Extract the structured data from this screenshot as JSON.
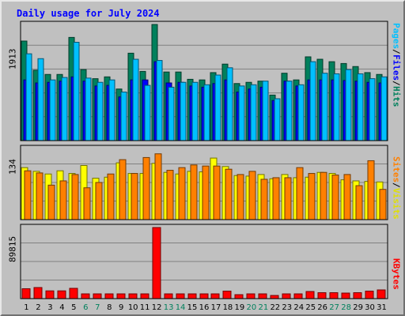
{
  "chart_data": {
    "type": "bar",
    "title": "Daily usage for July 2024",
    "categories": [
      "1",
      "2",
      "3",
      "4",
      "5",
      "6",
      "7",
      "8",
      "9",
      "10",
      "11",
      "12",
      "13",
      "14",
      "15",
      "16",
      "17",
      "18",
      "19",
      "20",
      "21",
      "22",
      "23",
      "24",
      "25",
      "26",
      "27",
      "28",
      "29",
      "30",
      "31"
    ],
    "weekend_days": [
      "6",
      "7",
      "13",
      "14",
      "20",
      "21",
      "27",
      "28"
    ],
    "grid": true,
    "panels": [
      {
        "id": "pages-files-hits",
        "max_label": "1913",
        "ylim": [
          0,
          1913
        ],
        "legend": [
          {
            "text": "Hits",
            "color": "#00805c"
          },
          {
            "text": "/",
            "color": "#000000"
          },
          {
            "text": "Files",
            "color": "#0000ff"
          },
          {
            "text": "/",
            "color": "#000000"
          },
          {
            "text": "Pages",
            "color": "#00c0ff"
          }
        ],
        "series": [
          {
            "name": "Hits",
            "color": "#00805c",
            "values": [
              1640,
              1160,
              1090,
              1090,
              1700,
              1170,
              1020,
              1050,
              850,
              1440,
              1140,
              1913,
              1130,
              1130,
              1010,
              1000,
              1120,
              1260,
              940,
              960,
              980,
              750,
              1110,
              1000,
              1380,
              1340,
              1300,
              1270,
              1220,
              1120,
              1090
            ]
          },
          {
            "name": "Files",
            "color": "#0000ff",
            "values": [
              1000,
              950,
              960,
              980,
              1050,
              980,
              900,
              910,
              720,
              1000,
              1000,
              1300,
              950,
              960,
              900,
              880,
              940,
              1000,
              800,
              850,
              880,
              660,
              980,
              900,
              1000,
              1000,
              1000,
              990,
              980,
              960,
              950
            ]
          },
          {
            "name": "Pages",
            "color": "#00c0ff",
            "values": [
              1430,
              1350,
              1000,
              1040,
              1620,
              1030,
              960,
              1000,
              800,
              1340,
              910,
              1320,
              880,
              960,
              960,
              920,
              1080,
              1200,
              900,
              920,
              980,
              690,
              980,
              920,
              1300,
              1110,
              1100,
              1170,
              1100,
              1020,
              1050
            ]
          }
        ]
      },
      {
        "id": "visits-sites",
        "max_label": "134",
        "ylim": [
          0,
          134
        ],
        "legend": [
          {
            "text": "Visits",
            "color": "#e0e000"
          },
          {
            "text": "/",
            "color": "#000000"
          },
          {
            "text": "Sites",
            "color": "#ff8000"
          }
        ],
        "series": [
          {
            "name": "Visits",
            "color": "#ffff00",
            "values": [
              98,
              91,
              86,
              92,
              87,
              102,
              78,
              80,
              107,
              87,
              87,
              106,
              89,
              86,
              91,
              90,
              116,
              100,
              83,
              82,
              85,
              77,
              85,
              79,
              80,
              89,
              87,
              75,
              73,
              72,
              71
            ]
          },
          {
            "name": "Sites",
            "color": "#ff8000",
            "values": [
              92,
              88,
              65,
              73,
              85,
              60,
              70,
              86,
              113,
              87,
              117,
              124,
              93,
              98,
              103,
              101,
              101,
              95,
              85,
              91,
              76,
              79,
              79,
              98,
              87,
              89,
              84,
              85,
              64,
              111,
              57
            ]
          }
        ]
      },
      {
        "id": "kbytes",
        "max_label": "89815",
        "ylim": [
          0,
          89815
        ],
        "legend": [
          {
            "text": "KBytes",
            "color": "#ff0000"
          }
        ],
        "series": [
          {
            "name": "KBytes",
            "color": "#ff0000",
            "values": [
              12500,
              14000,
              9800,
              9800,
              13000,
              6000,
              6000,
              6000,
              6000,
              6000,
              6000,
              89815,
              6000,
              6000,
              6000,
              6000,
              6000,
              9500,
              5000,
              6000,
              6000,
              4000,
              6000,
              6000,
              9000,
              7500,
              7500,
              7000,
              7500,
              9500,
              11000
            ]
          }
        ]
      }
    ]
  }
}
